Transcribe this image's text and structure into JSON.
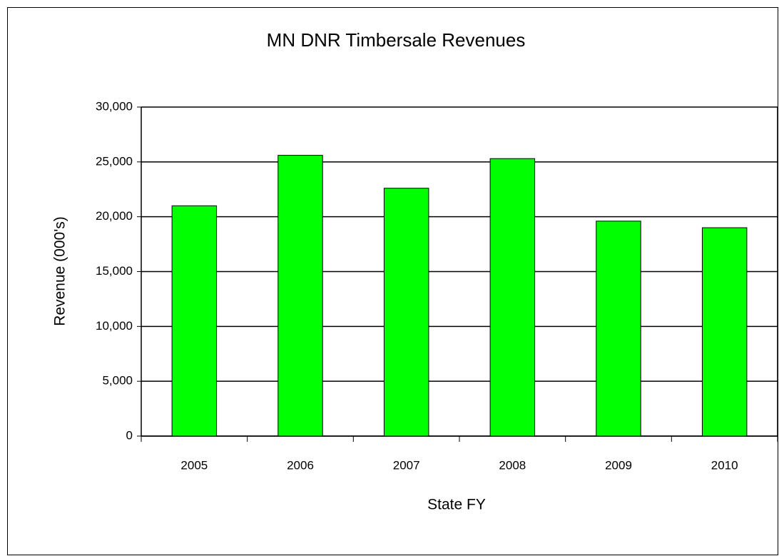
{
  "chart_data": {
    "type": "bar",
    "title": "MN DNR Timbersale Revenues",
    "xlabel": "State FY",
    "ylabel": "Revenue (000's)",
    "categories": [
      "2005",
      "2006",
      "2007",
      "2008",
      "2009",
      "2010"
    ],
    "values": [
      21000,
      25600,
      22600,
      25300,
      19600,
      19000
    ],
    "color": "#00ff00",
    "ylim": [
      0,
      30000
    ],
    "yticks": [
      0,
      {
        "value": 5000,
        "label": "5,000"
      },
      {
        "value": 10000,
        "label": "10,000"
      },
      {
        "value": 15000,
        "label": "15,000"
      },
      {
        "value": 20000,
        "label": "20,000"
      },
      {
        "value": 25000,
        "label": "25,000"
      },
      {
        "value": 30000,
        "label": "30,000"
      }
    ],
    "grid": true
  }
}
